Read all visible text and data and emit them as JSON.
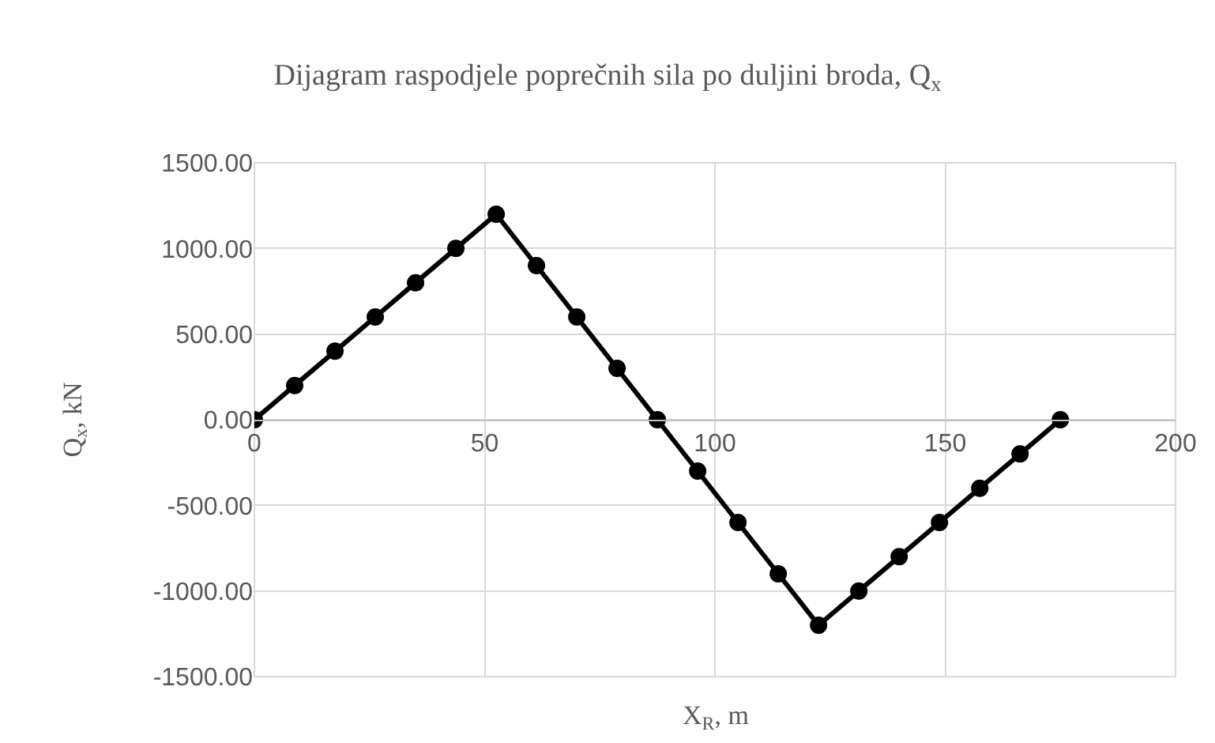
{
  "chart_data": {
    "type": "line",
    "title": "Dijagram raspodjele poprečnih sila po duljini broda, Q$_{x}$",
    "xlabel": "X$_{R}$, m",
    "ylabel": "Q$_{x}$, kN",
    "x": [
      0,
      8.75,
      17.5,
      26.25,
      35,
      43.75,
      52.5,
      61.25,
      70,
      78.75,
      87.5,
      96.25,
      105,
      113.75,
      122.5,
      131.25,
      140,
      148.75,
      157.5,
      166.25,
      175
    ],
    "series": [
      {
        "color": "#000000",
        "values": [
          0,
          200,
          400,
          600,
          800,
          1000,
          1200,
          900,
          600,
          300,
          0,
          -300,
          -600,
          -900,
          -1200,
          -1000,
          -800,
          -600,
          -400,
          -200,
          0
        ]
      }
    ],
    "xlim": [
      0,
      200
    ],
    "xticks": [
      0,
      50,
      100,
      150,
      200
    ],
    "ylim": [
      -1500,
      1500
    ],
    "yticks": [
      {
        "value": -1500,
        "label": "-1500.00"
      },
      {
        "value": -1000,
        "label": "-1000.00"
      },
      {
        "value": -500,
        "label": "-500.00"
      },
      {
        "value": 0,
        "label": "0.00"
      },
      {
        "value": 500,
        "label": "500.00"
      },
      {
        "value": 1000,
        "label": "1000.00"
      },
      {
        "value": 1500,
        "label": "1500.00"
      }
    ],
    "grid": true,
    "marker": "circle",
    "line_style": "solid"
  }
}
